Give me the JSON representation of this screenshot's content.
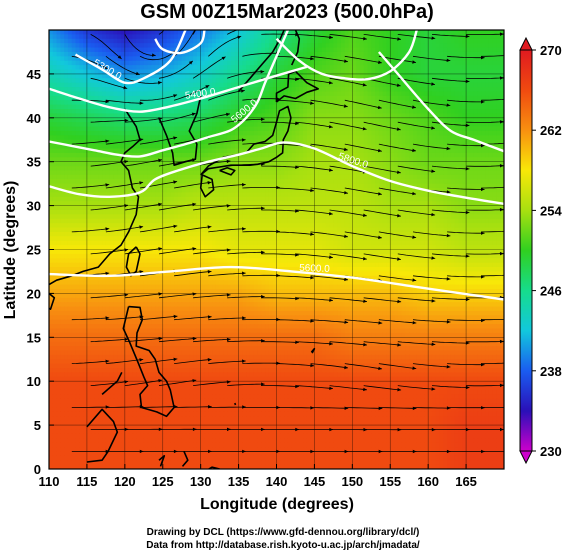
{
  "title": "GSM 00Z15Mar2023 (500.0hPa)",
  "xlabel": "Longitude (degrees)",
  "ylabel": "Latitude  (degrees)",
  "x_ticks": [
    "110",
    "115",
    "120",
    "125",
    "130",
    "135",
    "140",
    "145",
    "150",
    "155",
    "160",
    "165"
  ],
  "y_ticks": [
    "0",
    "5",
    "10",
    "15",
    "20",
    "25",
    "30",
    "35",
    "40",
    "45"
  ],
  "colorbar": {
    "ticks": [
      "230",
      "238",
      "246",
      "254",
      "262",
      "270"
    ],
    "min": 230,
    "max": 270,
    "colors": [
      "#cc00cc",
      "#2a10b8",
      "#1a5cf0",
      "#12c8dc",
      "#16dc8c",
      "#30d020",
      "#a8e010",
      "#f8e808",
      "#f89010",
      "#f04a10",
      "#e01a20"
    ]
  },
  "contour_labels": [
    "5300.0",
    "5400.0",
    "5600.0",
    "5600.0",
    "5800.0"
  ],
  "credits": [
    "Drawing by DCL (https://www.gfd-dennou.org/library/dcl/)",
    "Data from http://database.rish.kyoto-u.ac.jp/arch/jmadata/"
  ],
  "chart_data": {
    "type": "heatmap",
    "title": "GSM 00Z15Mar2023 (500.0hPa)",
    "xlabel": "Longitude (degrees)",
    "ylabel": "Latitude  (degrees)",
    "xlim": [
      110,
      170
    ],
    "ylim": [
      0,
      50
    ],
    "colorbar_range": [
      230,
      270
    ],
    "temperature_field": [
      {
        "lat": 50,
        "values": [
          240,
          236,
          234,
          236,
          239,
          242,
          246,
          249,
          251,
          250,
          249,
          250
        ]
      },
      {
        "lat": 45,
        "values": [
          244,
          242,
          240,
          241,
          243,
          246,
          249,
          251,
          252,
          250,
          249,
          249
        ]
      },
      {
        "lat": 40,
        "values": [
          249,
          248,
          247,
          247,
          248,
          250,
          251,
          253,
          253,
          252,
          251,
          250
        ]
      },
      {
        "lat": 35,
        "values": [
          252,
          252,
          252,
          252,
          252,
          253,
          253,
          254,
          254,
          253,
          252,
          252
        ]
      },
      {
        "lat": 30,
        "values": [
          254,
          254,
          254,
          254,
          255,
          255,
          255,
          255,
          255,
          254,
          254,
          253
        ]
      },
      {
        "lat": 25,
        "values": [
          258,
          258,
          258,
          258,
          258,
          257,
          257,
          257,
          256,
          256,
          256,
          255
        ]
      },
      {
        "lat": 20,
        "values": [
          261,
          261,
          261,
          261,
          261,
          261,
          260,
          260,
          260,
          260,
          259,
          259
        ]
      },
      {
        "lat": 15,
        "values": [
          264,
          264,
          264,
          264,
          264,
          264,
          264,
          264,
          263,
          263,
          263,
          263
        ]
      },
      {
        "lat": 10,
        "values": [
          266,
          266,
          266,
          266,
          266,
          266,
          266,
          266,
          266,
          266,
          266,
          266
        ]
      },
      {
        "lat": 5,
        "values": [
          266,
          266,
          266,
          266,
          266,
          266,
          266,
          266,
          266,
          266,
          266,
          267
        ]
      },
      {
        "lat": 0,
        "values": [
          266,
          266,
          266,
          266,
          266,
          266,
          266,
          266,
          266,
          266,
          266,
          267
        ]
      }
    ],
    "grid_lons": [
      110,
      115,
      120,
      125,
      130,
      135,
      140,
      145,
      150,
      155,
      160,
      165
    ],
    "contours_m": [
      {
        "level": 5300,
        "points": [
          [
            113.5,
            47.2
          ],
          [
            117,
            45.5
          ],
          [
            120,
            44
          ],
          [
            122.5,
            44.5
          ],
          [
            126,
            46.5
          ],
          [
            128,
            50
          ]
        ]
      },
      {
        "level": 5400,
        "points": [
          [
            110,
            43.3
          ],
          [
            114,
            42.2
          ],
          [
            118,
            41.2
          ],
          [
            122,
            40.7
          ],
          [
            126,
            41.3
          ],
          [
            130,
            42.2
          ],
          [
            135,
            43.5
          ],
          [
            140,
            44.8
          ],
          [
            144,
            45.8
          ]
        ]
      },
      {
        "level": 5600,
        "points": [
          [
            110,
            37.3
          ],
          [
            113,
            36.8
          ],
          [
            116,
            36.3
          ],
          [
            119,
            35.8
          ],
          [
            122,
            35.6
          ],
          [
            125,
            36.3
          ],
          [
            128,
            37
          ],
          [
            131,
            37.8
          ],
          [
            134,
            38.6
          ],
          [
            136,
            40
          ],
          [
            137.5,
            41.8
          ],
          [
            138.5,
            44
          ],
          [
            140,
            47
          ],
          [
            141.5,
            50
          ]
        ]
      },
      {
        "level": 5800,
        "points": [
          [
            110,
            22.2
          ],
          [
            118,
            22
          ],
          [
            126,
            22.5
          ],
          [
            134,
            23
          ],
          [
            142,
            22.5
          ],
          [
            150,
            21.8
          ],
          [
            158,
            20.8
          ],
          [
            166,
            19.8
          ],
          [
            170,
            19.3
          ]
        ]
      },
      {
        "level": 5600,
        "points": [
          [
            110,
            32.2
          ],
          [
            114,
            31.3
          ],
          [
            118,
            31
          ],
          [
            122,
            31.5
          ],
          [
            124,
            33
          ],
          [
            127,
            34
          ],
          [
            131,
            35
          ],
          [
            135,
            35.8
          ],
          [
            138,
            36.5
          ],
          [
            141,
            37.2
          ],
          [
            145,
            36.5
          ],
          [
            150,
            34.5
          ],
          [
            155,
            32.8
          ],
          [
            160,
            31.7
          ],
          [
            165,
            30.9
          ],
          [
            170,
            30.2
          ]
        ]
      },
      {
        "level": 5500,
        "points": [
          [
            140,
            49
          ],
          [
            143,
            46.5
          ],
          [
            146,
            45
          ],
          [
            149,
            44.5
          ],
          [
            152,
            44.4
          ],
          [
            155,
            45.3
          ],
          [
            157.5,
            47.5
          ],
          [
            158.5,
            50
          ]
        ]
      },
      {
        "level": 5500,
        "points": [
          [
            153.5,
            47.5
          ],
          [
            156,
            45
          ],
          [
            160,
            41
          ],
          [
            163,
            38.5
          ],
          [
            166,
            37.5
          ],
          [
            170,
            36.2
          ]
        ]
      },
      {
        "level": 5300,
        "points": [
          [
            124,
            49
          ],
          [
            125,
            47.8
          ],
          [
            127.5,
            47.4
          ],
          [
            130,
            48.5
          ],
          [
            130.5,
            50
          ]
        ]
      }
    ]
  }
}
